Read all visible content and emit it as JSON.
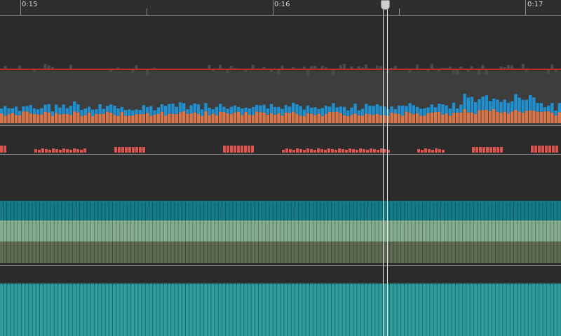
{
  "timeline": {
    "time_labels": [
      "0:15",
      "0:16",
      "0:17"
    ]
  },
  "colors": {
    "background": "#2b2b2b",
    "frame_band": "#3d3d3d",
    "baseline_red": "#c0302f",
    "frame_blue": "#1f8fcf",
    "frame_orange": "#d9764a",
    "event_red": "#d9544d",
    "teal_dark": "#137c86",
    "green_light": "#85ad8e",
    "green_dark": "#5e6a52",
    "teal_bottom": "#2f9c9e",
    "playhead": "#e6e6e6"
  },
  "icons": {
    "playhead": "playhead-handle-icon"
  }
}
